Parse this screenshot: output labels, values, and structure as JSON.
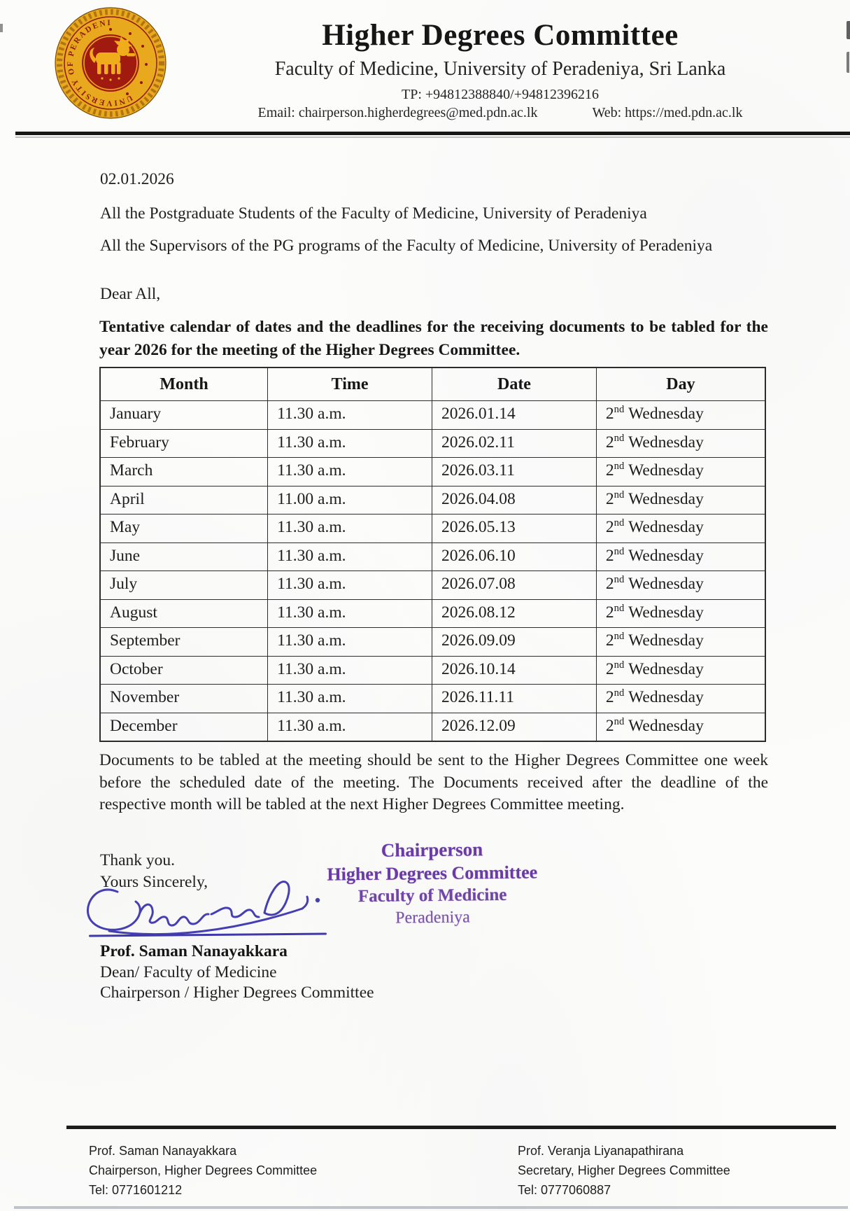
{
  "header": {
    "title": "Higher Degrees Committee",
    "subtitle": "Faculty of Medicine, University of Peradeniya, Sri Lanka",
    "tp": "TP: +94812388840/+94812396216",
    "email": "Email: chairperson.higherdegrees@med.pdn.ac.lk",
    "web": "Web: https://med.pdn.ac.lk",
    "seal_ring_text": "UNIVERSITY OF PERADENIYA"
  },
  "letter": {
    "date": "02.01.2026",
    "recipients": [
      "All the Postgraduate Students of the Faculty of Medicine, University of Peradeniya",
      "All the Supervisors of the PG programs of the Faculty of Medicine, University of Peradeniya"
    ],
    "salutation": "Dear All,",
    "subject": "Tentative calendar of dates and the deadlines for the receiving documents to be tabled for the year 2026 for the meeting of the Higher Degrees Committee.",
    "body_paragraph": "Documents to be tabled at the meeting should be sent to the Higher Degrees Committee one week before the scheduled date of the meeting. The Documents received after the deadline of the respective month will be tabled at the next Higher Degrees Committee meeting.",
    "closing": {
      "thanks": "Thank you.",
      "sincerely": "Yours Sincerely,"
    },
    "signatory": {
      "name": "Prof. Saman Nanayakkara",
      "title1": "Dean/ Faculty of Medicine",
      "title2": "Chairperson / Higher Degrees Committee"
    }
  },
  "table": {
    "headers": [
      "Month",
      "Time",
      "Date",
      "Day"
    ],
    "rows": [
      {
        "month": "January",
        "time": "11.30 a.m.",
        "date": "2026.01.14",
        "day": {
          "num": "2",
          "suffix": "nd",
          "name": "Wednesday"
        }
      },
      {
        "month": "February",
        "time": "11.30 a.m.",
        "date": "2026.02.11",
        "day": {
          "num": "2",
          "suffix": "nd",
          "name": "Wednesday"
        }
      },
      {
        "month": "March",
        "time": "11.30 a.m.",
        "date": "2026.03.11",
        "day": {
          "num": "2",
          "suffix": "nd",
          "name": "Wednesday"
        }
      },
      {
        "month": "April",
        "time": "11.00 a.m.",
        "date": "2026.04.08",
        "day": {
          "num": "2",
          "suffix": "nd",
          "name": "Wednesday"
        }
      },
      {
        "month": "May",
        "time": "11.30 a.m.",
        "date": "2026.05.13",
        "day": {
          "num": "2",
          "suffix": "nd",
          "name": "Wednesday"
        }
      },
      {
        "month": "June",
        "time": "11.30 a.m.",
        "date": "2026.06.10",
        "day": {
          "num": "2",
          "suffix": "nd",
          "name": "Wednesday"
        }
      },
      {
        "month": "July",
        "time": "11.30 a.m.",
        "date": "2026.07.08",
        "day": {
          "num": "2",
          "suffix": "nd",
          "name": "Wednesday"
        }
      },
      {
        "month": "August",
        "time": "11.30 a.m.",
        "date": "2026.08.12",
        "day": {
          "num": "2",
          "suffix": "nd",
          "name": "Wednesday"
        }
      },
      {
        "month": "September",
        "time": "11.30 a.m.",
        "date": "2026.09.09",
        "day": {
          "num": "2",
          "suffix": "nd",
          "name": "Wednesday"
        }
      },
      {
        "month": "October",
        "time": "11.30 a.m.",
        "date": "2026.10.14",
        "day": {
          "num": "2",
          "suffix": "nd",
          "name": "Wednesday"
        }
      },
      {
        "month": "November",
        "time": "11.30 a.m.",
        "date": "2026.11.11",
        "day": {
          "num": "2",
          "suffix": "nd",
          "name": "Wednesday"
        }
      },
      {
        "month": "December",
        "time": "11.30 a.m.",
        "date": "2026.12.09",
        "day": {
          "num": "2",
          "suffix": "nd",
          "name": "Wednesday"
        }
      }
    ]
  },
  "stamp": {
    "lines": [
      "Chairperson",
      "Higher Degrees Committee",
      "Faculty of Medicine",
      "Peradeniya"
    ]
  },
  "footer": {
    "left": {
      "name": "Prof. Saman Nanayakkara",
      "role": "Chairperson, Higher Degrees Committee",
      "tel": "Tel: 0771601212"
    },
    "right": {
      "name": "Prof. Veranja Liyanapathirana",
      "role": "Secretary, Higher Degrees Committee",
      "tel": "Tel: 0777060887"
    }
  },
  "colors": {
    "text": "#1f1f1f",
    "stamp_purple": "#6a3ba6",
    "signature_ink": "#453fb2",
    "seal_gold": "#e9a91f",
    "seal_red": "#a01a10"
  }
}
